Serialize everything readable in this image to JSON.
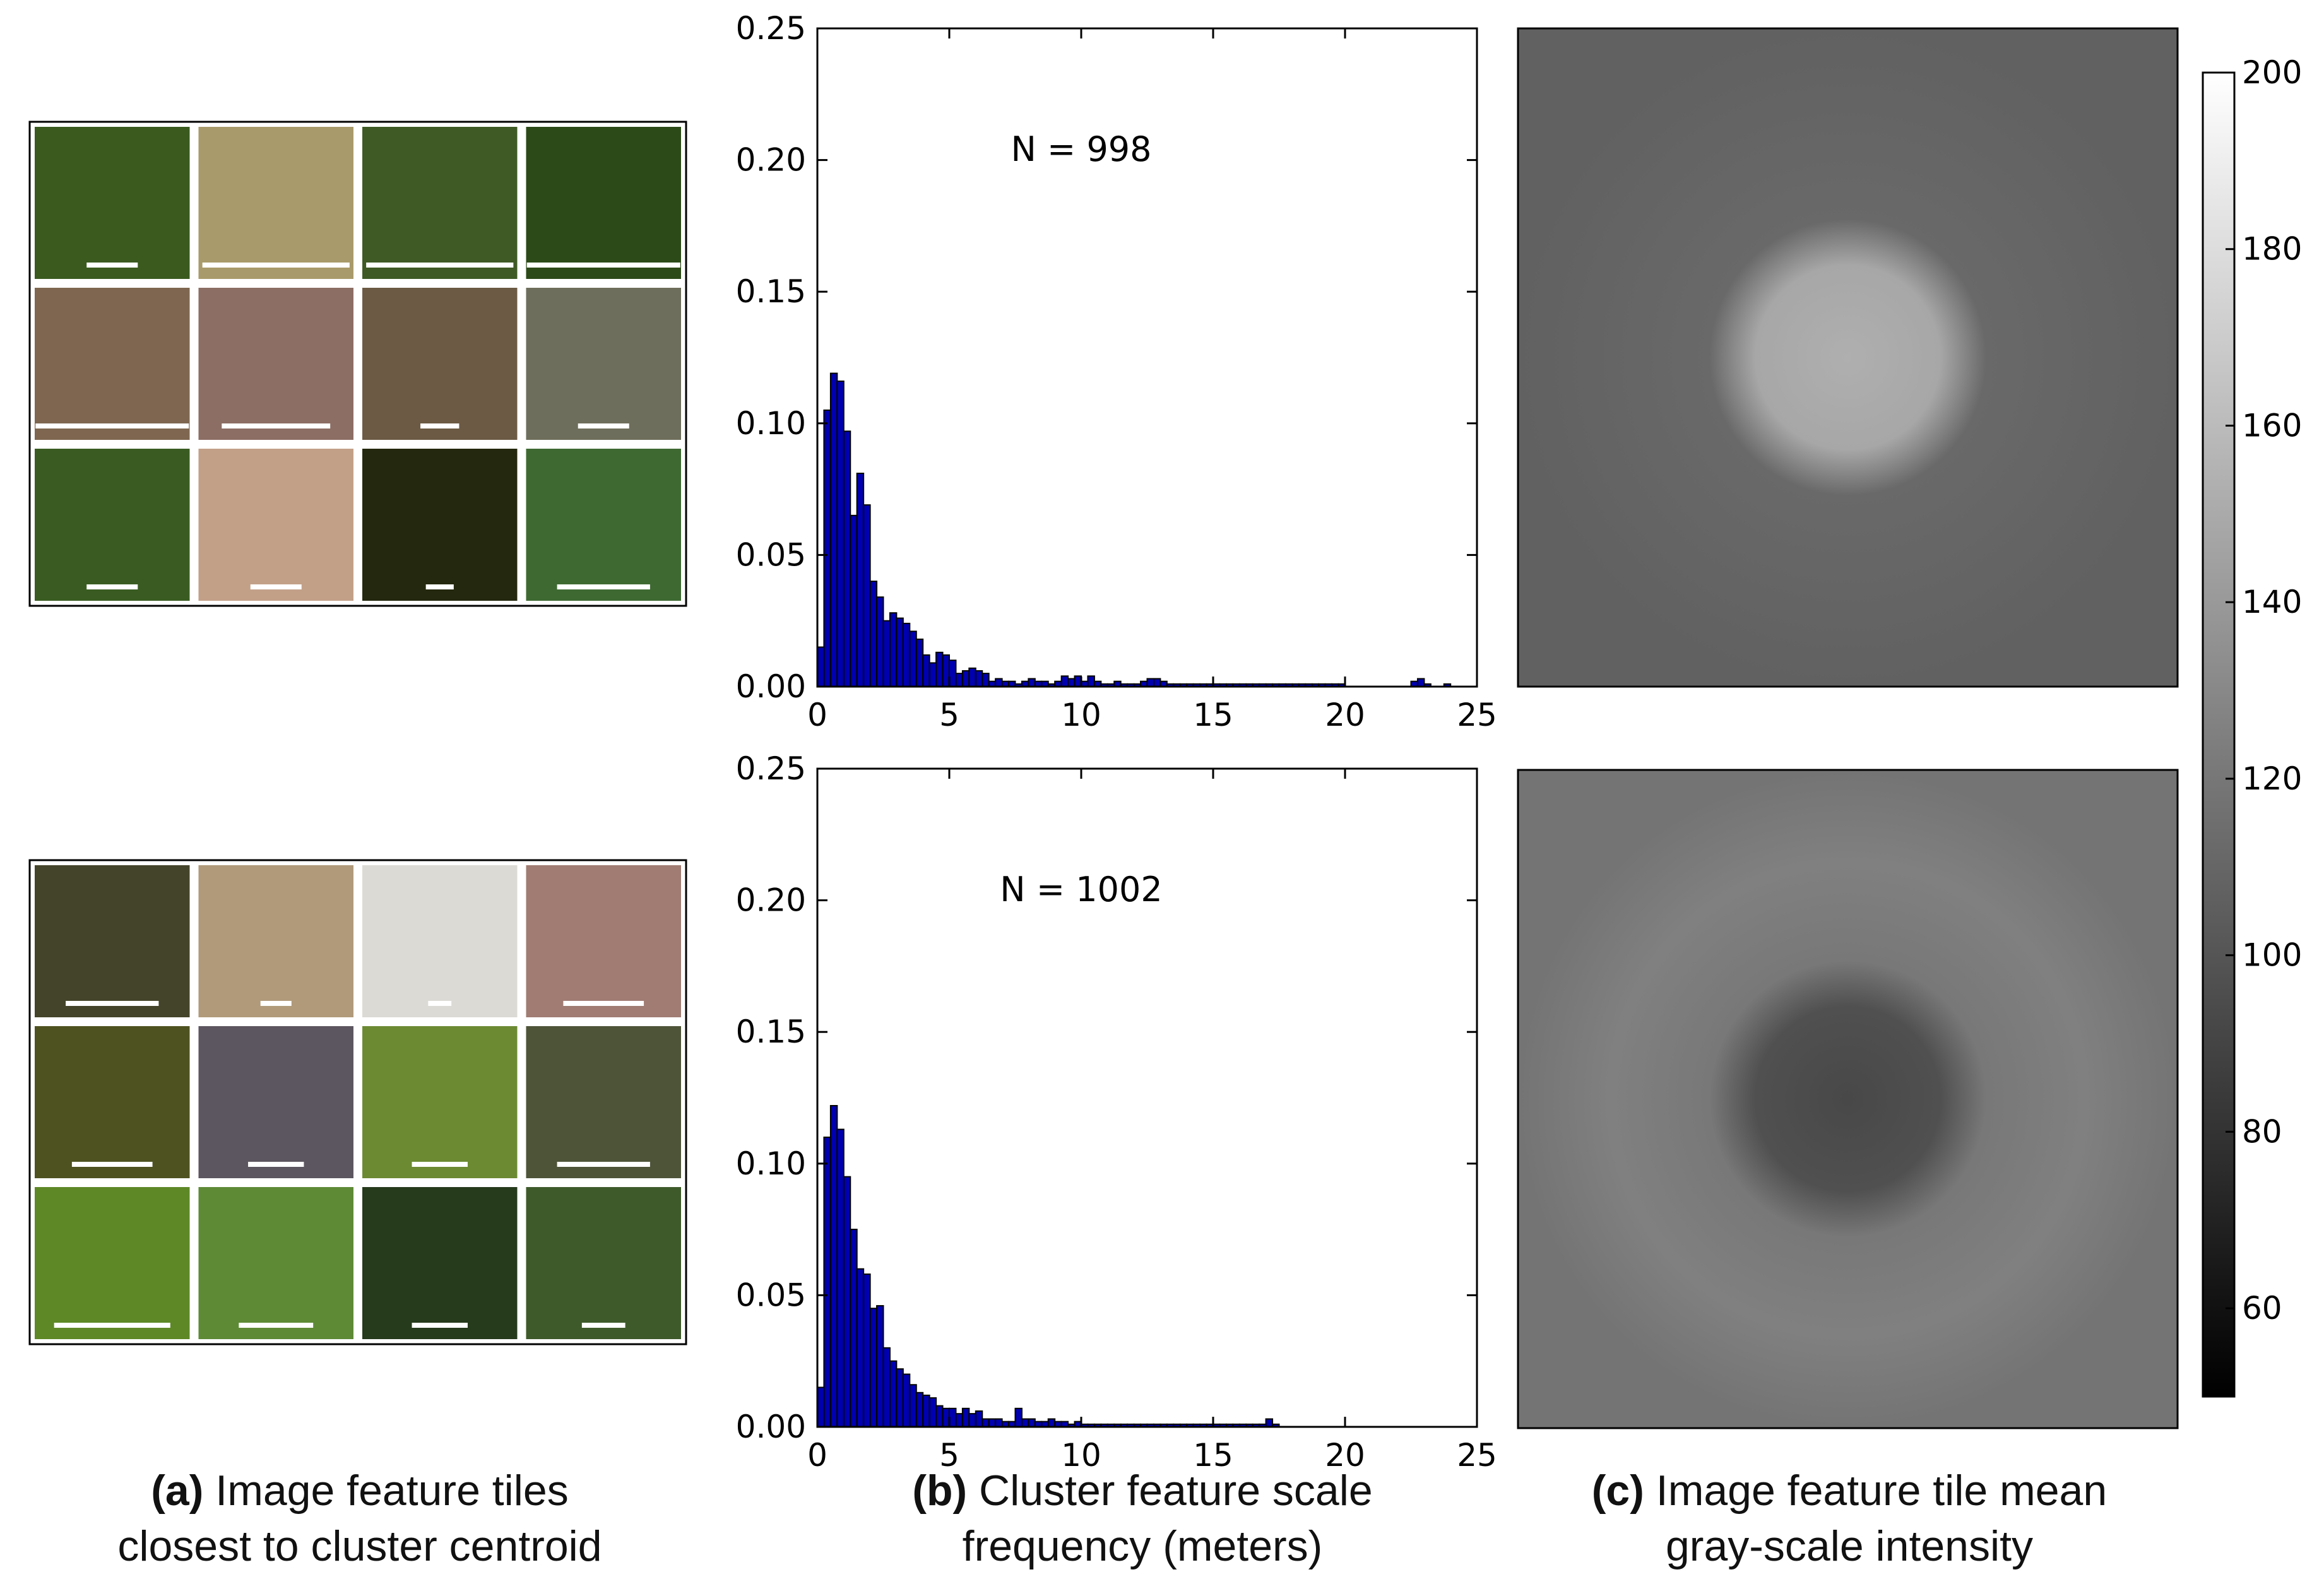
{
  "chart_data": [
    {
      "type": "image_grid",
      "panel": "a",
      "groups": [
        {
          "cluster": 1,
          "rows": 3,
          "cols": 4,
          "tiles": [
            {
              "color": "#3a5a1e",
              "scalebar": 0.33
            },
            {
              "color": "#a89a6a",
              "scalebar": 0.95
            },
            {
              "color": "#3f5a24",
              "scalebar": 0.95
            },
            {
              "color": "#2c4a18",
              "scalebar": 0.99
            },
            {
              "color": "#7e6650",
              "scalebar": 0.99
            },
            {
              "color": "#8c6e64",
              "scalebar": 0.7
            },
            {
              "color": "#6c5a44",
              "scalebar": 0.25
            },
            {
              "color": "#6e6e5c",
              "scalebar": 0.33
            },
            {
              "color": "#3a5c22",
              "scalebar": 0.33
            },
            {
              "color": "#c2a088",
              "scalebar": 0.33
            },
            {
              "color": "#24280e",
              "scalebar": 0.18
            },
            {
              "color": "#3e6a32",
              "scalebar": 0.6
            }
          ]
        },
        {
          "cluster": 2,
          "rows": 3,
          "cols": 4,
          "tiles": [
            {
              "color": "#44442a",
              "scalebar": 0.6
            },
            {
              "color": "#b09a7a",
              "scalebar": 0.2
            },
            {
              "color": "#dcdad4",
              "scalebar": 0.15
            },
            {
              "color": "#a07c72",
              "scalebar": 0.52
            },
            {
              "color": "#4e5220",
              "scalebar": 0.52
            },
            {
              "color": "#5c5660",
              "scalebar": 0.36
            },
            {
              "color": "#6c8a32",
              "scalebar": 0.36
            },
            {
              "color": "#4e5438",
              "scalebar": 0.6
            },
            {
              "color": "#5e8826",
              "scalebar": 0.75
            },
            {
              "color": "#5e8a36",
              "scalebar": 0.48
            },
            {
              "color": "#263a1c",
              "scalebar": 0.36
            },
            {
              "color": "#3e5a2a",
              "scalebar": 0.28
            }
          ]
        }
      ],
      "caption_bold": "(a)",
      "caption_line1": "Image feature tiles",
      "caption_line2": "closest to cluster centroid"
    },
    {
      "type": "bar",
      "panel": "b",
      "annotation": "N = 998",
      "xlim": [
        0,
        25
      ],
      "ylim": [
        0,
        0.25
      ],
      "xticks": [
        0,
        5,
        10,
        15,
        20,
        25
      ],
      "yticks": [
        "0.00",
        "0.05",
        "0.10",
        "0.15",
        "0.20",
        "0.25"
      ],
      "bin_width": 0.25,
      "bar_color": "#0000b0",
      "values": [
        0.015,
        0.105,
        0.119,
        0.116,
        0.097,
        0.065,
        0.081,
        0.069,
        0.04,
        0.034,
        0.025,
        0.028,
        0.026,
        0.024,
        0.021,
        0.018,
        0.012,
        0.009,
        0.013,
        0.012,
        0.01,
        0.005,
        0.006,
        0.007,
        0.006,
        0.005,
        0.002,
        0.003,
        0.002,
        0.002,
        0.001,
        0.002,
        0.003,
        0.002,
        0.002,
        0.001,
        0.002,
        0.004,
        0.003,
        0.004,
        0.002,
        0.004,
        0.002,
        0.001,
        0.001,
        0.002,
        0.001,
        0.001,
        0.001,
        0.002,
        0.003,
        0.003,
        0.002,
        0.001,
        0.001,
        0.001,
        0.001,
        0.001,
        0.001,
        0.001,
        0.001,
        0.001,
        0.001,
        0.001,
        0.001,
        0.001,
        0.001,
        0.001,
        0.001,
        0.001,
        0.001,
        0.001,
        0.001,
        0.001,
        0.001,
        0.001,
        0.001,
        0.001,
        0.001,
        0.001,
        0,
        0,
        0,
        0,
        0,
        0,
        0,
        0,
        0,
        0,
        0.002,
        0.003,
        0.001,
        0,
        0,
        0.001,
        0,
        0,
        0,
        0
      ]
    },
    {
      "type": "bar",
      "panel": "b",
      "annotation": "N = 1002",
      "xlim": [
        0,
        25
      ],
      "ylim": [
        0,
        0.25
      ],
      "xticks": [
        0,
        5,
        10,
        15,
        20,
        25
      ],
      "yticks": [
        "0.00",
        "0.05",
        "0.10",
        "0.15",
        "0.20",
        "0.25"
      ],
      "bin_width": 0.25,
      "bar_color": "#0000b0",
      "values": [
        0.015,
        0.11,
        0.122,
        0.113,
        0.095,
        0.075,
        0.06,
        0.058,
        0.045,
        0.046,
        0.03,
        0.025,
        0.022,
        0.02,
        0.016,
        0.013,
        0.012,
        0.011,
        0.008,
        0.007,
        0.007,
        0.005,
        0.007,
        0.005,
        0.006,
        0.003,
        0.003,
        0.003,
        0.002,
        0.002,
        0.007,
        0.003,
        0.003,
        0.002,
        0.002,
        0.003,
        0.002,
        0.002,
        0.001,
        0.002,
        0.001,
        0.001,
        0.001,
        0.001,
        0.001,
        0.001,
        0.001,
        0.001,
        0.001,
        0.001,
        0.001,
        0.001,
        0.001,
        0.001,
        0.001,
        0.001,
        0.001,
        0.001,
        0.001,
        0.001,
        0.001,
        0.001,
        0.001,
        0.001,
        0.001,
        0.001,
        0.001,
        0.001,
        0.003,
        0.001,
        0,
        0,
        0,
        0,
        0,
        0,
        0,
        0,
        0,
        0,
        0,
        0,
        0,
        0,
        0,
        0,
        0,
        0,
        0,
        0,
        0,
        0,
        0,
        0,
        0,
        0,
        0,
        0,
        0,
        0
      ]
    },
    {
      "type": "heatmap",
      "panel": "c",
      "colormap": "gray",
      "maps": [
        {
          "background": 105,
          "center": 175
        },
        {
          "background": 120,
          "ring": 128,
          "center": 72
        }
      ],
      "colorbar": {
        "min": 50,
        "max": 200,
        "ticks": [
          "60",
          "80",
          "100",
          "120",
          "140",
          "160",
          "180",
          "200"
        ]
      },
      "caption_bold": "(c)",
      "caption_line1": "Image feature tile mean",
      "caption_line2": "gray-scale intensity"
    }
  ],
  "captions": {
    "b_bold": "(b)",
    "b_line1": "Cluster feature scale",
    "b_line2": "frequency (meters)"
  }
}
